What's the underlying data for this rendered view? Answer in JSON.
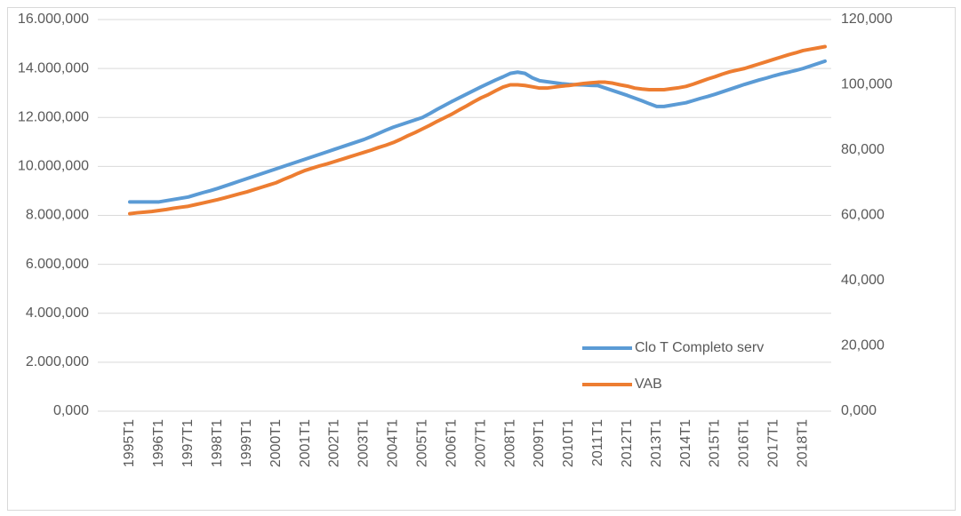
{
  "chart_data": {
    "type": "line",
    "categories": [
      "1995T1",
      null,
      null,
      null,
      "1996T1",
      null,
      null,
      null,
      "1997T1",
      null,
      null,
      null,
      "1998T1",
      null,
      null,
      null,
      "1999T1",
      null,
      null,
      null,
      "2000T1",
      null,
      null,
      null,
      "2001T1",
      null,
      null,
      null,
      "2002T1",
      null,
      null,
      null,
      "2003T1",
      null,
      null,
      null,
      "2004T1",
      null,
      null,
      null,
      "2005T1",
      null,
      null,
      null,
      "2006T1",
      null,
      null,
      null,
      "2007T1",
      null,
      null,
      null,
      "2008T1",
      null,
      null,
      null,
      "2009T1",
      null,
      null,
      null,
      "2010T1",
      null,
      null,
      null,
      "2011T1",
      null,
      null,
      null,
      "2012T1",
      null,
      null,
      null,
      "2013T1",
      null,
      null,
      null,
      "2014T1",
      null,
      null,
      null,
      "2015T1",
      null,
      null,
      null,
      "2016T1",
      null,
      null,
      null,
      "2017T1",
      null,
      null,
      null,
      "2018T1",
      null,
      null,
      null
    ],
    "series": [
      {
        "name": "Clo T Completo serv",
        "color": "#5b9bd5",
        "values": [
          8550000,
          8550000,
          8550000,
          8550000,
          8550000,
          8600000,
          8650000,
          8700000,
          8750000,
          8840000,
          8930000,
          9010000,
          9100000,
          9200000,
          9300000,
          9400000,
          9500000,
          9600000,
          9700000,
          9800000,
          9900000,
          10000000,
          10100000,
          10200000,
          10300000,
          10400000,
          10500000,
          10600000,
          10700000,
          10800000,
          10900000,
          11000000,
          11100000,
          11220000,
          11350000,
          11480000,
          11600000,
          11700000,
          11800000,
          11900000,
          12000000,
          12160000,
          12330000,
          12490000,
          12650000,
          12800000,
          12950000,
          13100000,
          13250000,
          13390000,
          13530000,
          13660000,
          13800000,
          13850000,
          13800000,
          13620000,
          13500000,
          13460000,
          13420000,
          13380000,
          13350000,
          13340000,
          13330000,
          13310000,
          13300000,
          13200000,
          13100000,
          13000000,
          12900000,
          12790000,
          12680000,
          12560000,
          12450000,
          12450000,
          12500000,
          12550000,
          12600000,
          12690000,
          12780000,
          12860000,
          12950000,
          13050000,
          13150000,
          13250000,
          13350000,
          13440000,
          13530000,
          13610000,
          13700000,
          13780000,
          13850000,
          13920000,
          14000000,
          14100000,
          14200000,
          14300000
        ]
      },
      {
        "name": "VAB",
        "color": "#ed7d31",
        "axis": "y2",
        "values": [
          60500,
          60800,
          61000,
          61200,
          61500,
          61800,
          62200,
          62500,
          62800,
          63300,
          63800,
          64300,
          64800,
          65400,
          66000,
          66600,
          67200,
          67900,
          68600,
          69300,
          70000,
          71000,
          71900,
          72900,
          73800,
          74500,
          75200,
          75800,
          76500,
          77200,
          77900,
          78600,
          79300,
          80000,
          80800,
          81500,
          82300,
          83300,
          84400,
          85400,
          86500,
          87600,
          88800,
          89900,
          91000,
          92300,
          93500,
          94800,
          96000,
          97000,
          98200,
          99300,
          100000,
          100000,
          99800,
          99400,
          99000,
          99000,
          99300,
          99600,
          99800,
          100100,
          100400,
          100600,
          100800,
          100800,
          100500,
          100000,
          99600,
          99000,
          98700,
          98500,
          98500,
          98500,
          98800,
          99100,
          99500,
          100200,
          101000,
          101800,
          102500,
          103300,
          104000,
          104500,
          105000,
          105700,
          106400,
          107100,
          107800,
          108500,
          109200,
          109800,
          110500,
          110900,
          111300,
          111700
        ]
      }
    ],
    "ylim": [
      0,
      16000000
    ],
    "yticks": [
      {
        "value": 0,
        "label": "0,000"
      },
      {
        "value": 2000000,
        "label": "2.000,000"
      },
      {
        "value": 4000000,
        "label": "4.000,000"
      },
      {
        "value": 6000000,
        "label": "6.000,000"
      },
      {
        "value": 8000000,
        "label": "8.000,000"
      },
      {
        "value": 10000000,
        "label": "10.000,000"
      },
      {
        "value": 12000000,
        "label": "12.000,000"
      },
      {
        "value": 14000000,
        "label": "14.000,000"
      },
      {
        "value": 16000000,
        "label": "16.000,000"
      }
    ],
    "y2lim": [
      0,
      120000
    ],
    "y2ticks": [
      {
        "value": 0,
        "label": "0,000"
      },
      {
        "value": 20000,
        "label": "20,000"
      },
      {
        "value": 40000,
        "label": "40,000"
      },
      {
        "value": 60000,
        "label": "60,000"
      },
      {
        "value": 80000,
        "label": "80,000"
      },
      {
        "value": 100000,
        "label": "100,000"
      },
      {
        "value": 120000,
        "label": "120,000"
      }
    ],
    "grid": true,
    "legend": "lower-right"
  }
}
